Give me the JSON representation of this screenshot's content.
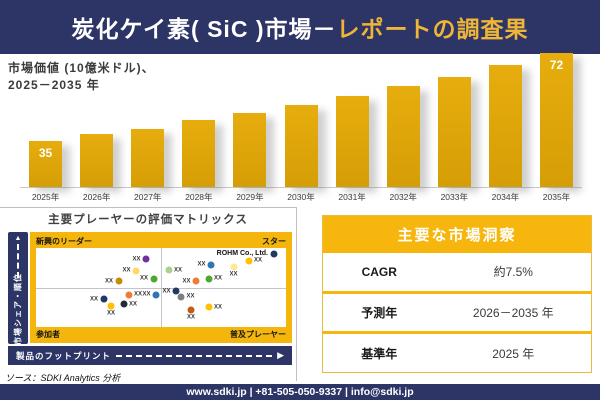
{
  "colors": {
    "navy": "#2C3566",
    "title_accent_gold": "#EFB537",
    "bar_gold": "#DCA30A",
    "band_gold": "#F5B60D"
  },
  "header": {
    "title_white": "炭化ケイ素( SiC )市場－",
    "title_gold": "レポートの調査果"
  },
  "chart_caption": {
    "line1": "市場価値 (10億米ドル)、",
    "line2": "2025－2035 年"
  },
  "chart_data": [
    {
      "type": "bar",
      "title": "市場価値 (10億米ドル)、2025－2035 年",
      "xlabel": "",
      "ylabel": "10億米ドル",
      "categories": [
        "2025年",
        "2026年",
        "2027年",
        "2028年",
        "2029年",
        "2030年",
        "2031年",
        "2032年",
        "2033年",
        "2034年",
        "2035年"
      ],
      "values": [
        35,
        38,
        40,
        44,
        47,
        50,
        54,
        58,
        62,
        67,
        72
      ],
      "data_labels": {
        "2025年": "35",
        "2035年": "72"
      },
      "grid": false,
      "legend": "none"
    },
    {
      "type": "scatter",
      "title": "主要プレーヤーの評価マトリックス",
      "xlabel": "製品のフットプリント",
      "ylabel": "市場シェア・順位",
      "quadrants": {
        "top_left": "新興のリーダー",
        "top_right": "スター",
        "bottom_left": "参加者",
        "bottom_right": "普及プレーヤー"
      },
      "points": [
        {
          "x": 44,
          "y": 14,
          "color": "#7030A0",
          "label": "XX",
          "pos": "left"
        },
        {
          "x": 40,
          "y": 29,
          "color": "#FFD966",
          "label": "XX",
          "pos": "left"
        },
        {
          "x": 47,
          "y": 39,
          "color": "#4EA72E",
          "label": "XX",
          "pos": "left"
        },
        {
          "x": 33,
          "y": 42,
          "color": "#BF8F00",
          "label": "XX",
          "pos": "left"
        },
        {
          "x": 95,
          "y": 7,
          "color": "#1F3864",
          "label": "ROHM Co., Ltd.",
          "pos": "left",
          "company": true
        },
        {
          "x": 85,
          "y": 16,
          "color": "#FFC000",
          "label": "XX",
          "pos": "right"
        },
        {
          "x": 70,
          "y": 21,
          "color": "#2E75B6",
          "label": "XX",
          "pos": "left"
        },
        {
          "x": 79,
          "y": 24,
          "color": "#FFE699",
          "label": "XX",
          "pos": "below"
        },
        {
          "x": 53,
          "y": 28,
          "color": "#A9D18E",
          "label": "XX",
          "pos": "right"
        },
        {
          "x": 69,
          "y": 39,
          "color": "#4EA72E",
          "label": "XX",
          "pos": "right"
        },
        {
          "x": 64,
          "y": 42,
          "color": "#ED7D31",
          "label": "XX",
          "pos": "left"
        },
        {
          "x": 37,
          "y": 59,
          "color": "#ED7D31",
          "label": "XX",
          "pos": "right"
        },
        {
          "x": 48,
          "y": 59,
          "color": "#2E75B6",
          "label": "XX",
          "pos": "left"
        },
        {
          "x": 27,
          "y": 65,
          "color": "#1F3864",
          "label": "XX",
          "pos": "left"
        },
        {
          "x": 35,
          "y": 71,
          "color": "#222A35",
          "label": "XX",
          "pos": "right"
        },
        {
          "x": 30,
          "y": 74,
          "color": "#FFC000",
          "label": "XX",
          "pos": "below"
        },
        {
          "x": 56,
          "y": 55,
          "color": "#1F3864",
          "label": "XX",
          "pos": "left"
        },
        {
          "x": 58,
          "y": 62,
          "color": "#7F7F7F",
          "label": "XX",
          "pos": "right"
        },
        {
          "x": 62,
          "y": 79,
          "color": "#C55A11",
          "label": "XX",
          "pos": "below"
        },
        {
          "x": 69,
          "y": 75,
          "color": "#FFC000",
          "label": "XX",
          "pos": "right"
        }
      ]
    }
  ],
  "insights": {
    "title": "主要な市場洞察",
    "rows": [
      {
        "label": "CAGR",
        "value": "約7.5%"
      },
      {
        "label": "予測年",
        "value": "2026－2035 年"
      },
      {
        "label": "基準年",
        "value": "2025 年"
      }
    ]
  },
  "source": {
    "text": "ソース：SDKI Analytics 分析"
  },
  "footer": {
    "text": "www.sdki.jp | +81-505-050-9337 | info@sdki.jp"
  }
}
